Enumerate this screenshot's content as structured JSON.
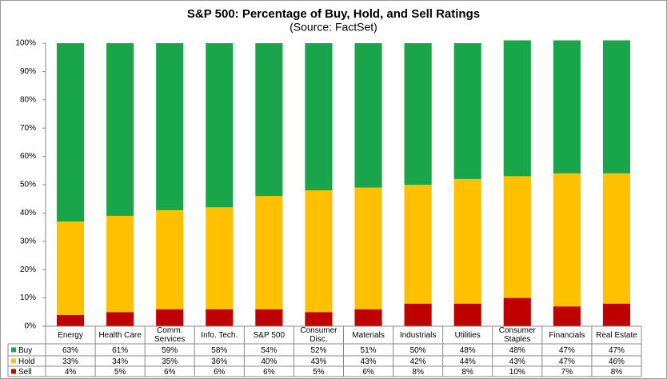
{
  "chart_data": {
    "type": "stacked_bar_table",
    "title": "S&P 500: Percentage of Buy, Hold, and Sell Ratings",
    "subtitle": "(Source: FactSet)",
    "categories": [
      "Energy",
      "Health Care",
      "Comm. Services",
      "Info. Tech.",
      "S&P 500",
      "Consumer Disc.",
      "Materials",
      "Industrials",
      "Utilities",
      "Consumer Staples",
      "Financials",
      "Real Estate"
    ],
    "series": [
      {
        "name": "Buy",
        "color": "#19a64b",
        "values": [
          63,
          61,
          59,
          58,
          54,
          52,
          51,
          50,
          48,
          48,
          47,
          47
        ],
        "value_labels": [
          "63%",
          "61%",
          "59%",
          "58%",
          "54%",
          "52%",
          "51%",
          "50%",
          "48%",
          "48%",
          "47%",
          "47%"
        ]
      },
      {
        "name": "Hold",
        "color": "#ffc000",
        "values": [
          33,
          34,
          35,
          36,
          40,
          43,
          43,
          42,
          44,
          43,
          47,
          46
        ],
        "value_labels": [
          "33%",
          "34%",
          "35%",
          "36%",
          "40%",
          "43%",
          "43%",
          "42%",
          "44%",
          "43%",
          "47%",
          "46%"
        ]
      },
      {
        "name": "Sell",
        "color": "#c00000",
        "values": [
          4,
          5,
          6,
          6,
          6,
          5,
          6,
          8,
          8,
          10,
          7,
          8
        ],
        "value_labels": [
          "4%",
          "5%",
          "6%",
          "6%",
          "6%",
          "5%",
          "6%",
          "8%",
          "8%",
          "10%",
          "7%",
          "8%"
        ]
      }
    ],
    "stack_order": [
      "Sell",
      "Hold",
      "Buy"
    ],
    "ylim": [
      0,
      100
    ],
    "yticks": [
      {
        "value": 0,
        "label": "0%"
      },
      {
        "value": 10,
        "label": "10%"
      },
      {
        "value": 20,
        "label": "20%"
      },
      {
        "value": 30,
        "label": "30%"
      },
      {
        "value": 40,
        "label": "40%"
      },
      {
        "value": 50,
        "label": "50%"
      },
      {
        "value": 60,
        "label": "60%"
      },
      {
        "value": 70,
        "label": "70%"
      },
      {
        "value": 80,
        "label": "80%"
      },
      {
        "value": 90,
        "label": "90%"
      },
      {
        "value": 100,
        "label": "100%"
      }
    ],
    "grid": false
  }
}
